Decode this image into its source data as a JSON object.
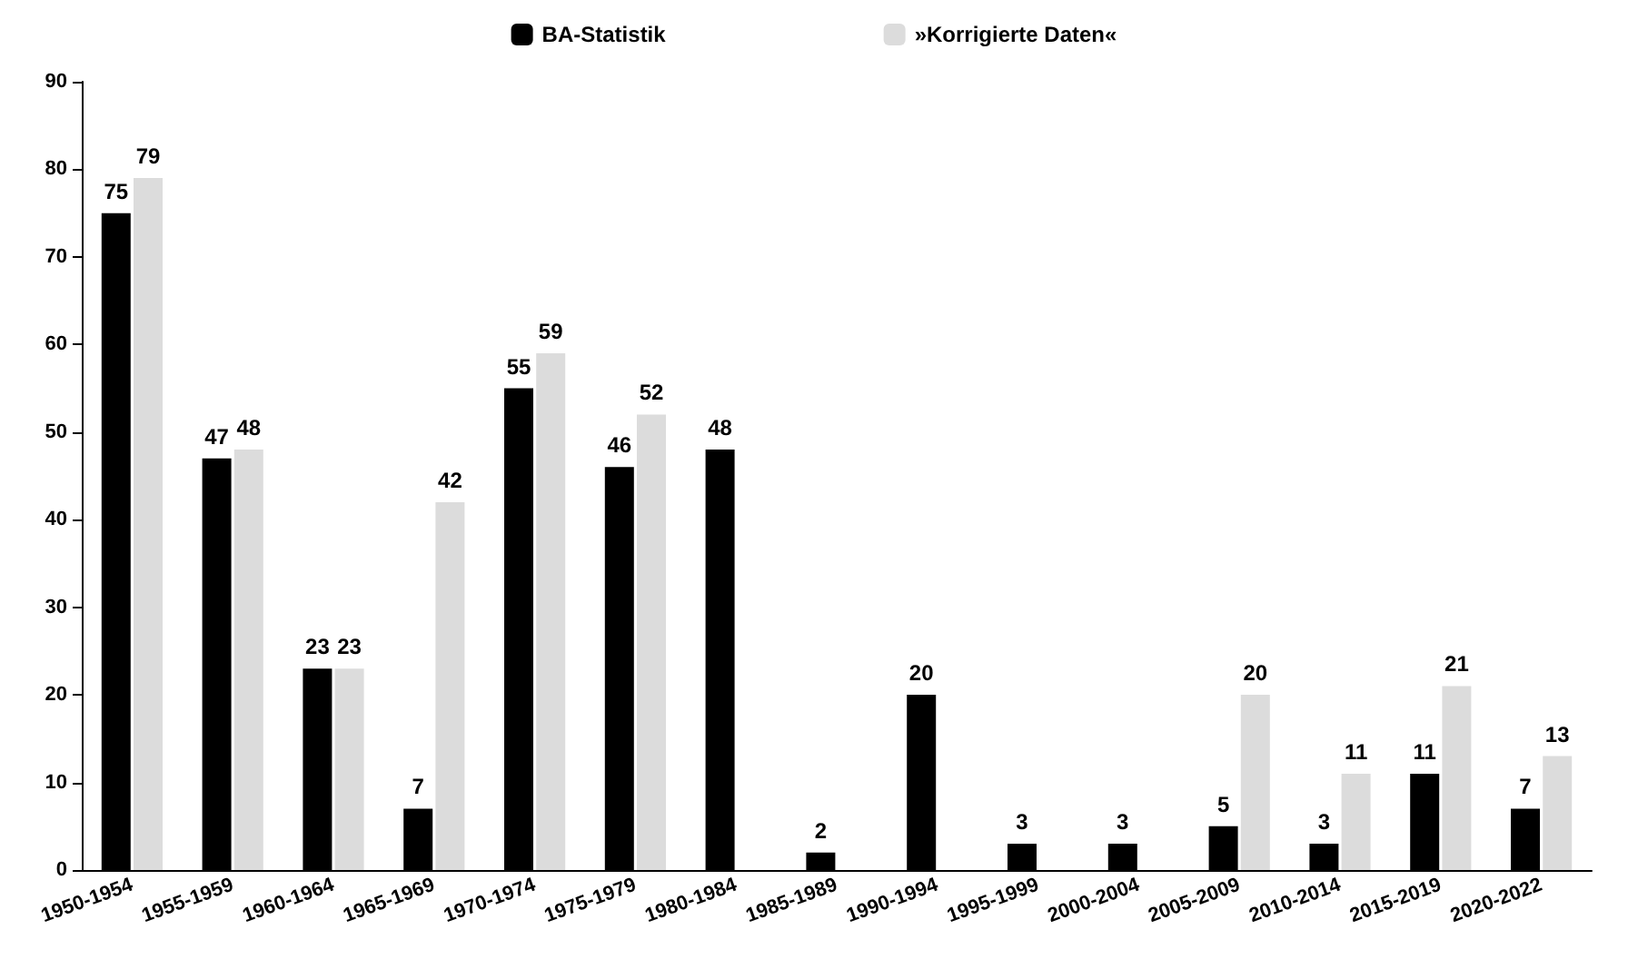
{
  "chart_data": {
    "type": "bar",
    "categories": [
      "1950-1954",
      "1955-1959",
      "1960-1964",
      "1965-1969",
      "1970-1974",
      "1975-1979",
      "1980-1984",
      "1985-1989",
      "1990-1994",
      "1995-1999",
      "2000-2004",
      "2005-2009",
      "2010-2014",
      "2015-2019",
      "2020-2022"
    ],
    "series": [
      {
        "name": "BA-Statistik",
        "color": "#000000",
        "values": [
          75,
          47,
          23,
          7,
          55,
          46,
          48,
          2,
          20,
          3,
          3,
          5,
          3,
          11,
          7
        ]
      },
      {
        "name": "»Korrigierte Daten«",
        "color": "#dcdcdc",
        "values": [
          79,
          48,
          23,
          42,
          59,
          52,
          null,
          null,
          null,
          null,
          null,
          20,
          11,
          21,
          13
        ]
      }
    ],
    "ylim": [
      0,
      90
    ],
    "yticks": [
      0,
      10,
      20,
      30,
      40,
      50,
      60,
      70,
      80,
      90
    ],
    "grid": false,
    "legend": "top",
    "data_labels": true
  }
}
